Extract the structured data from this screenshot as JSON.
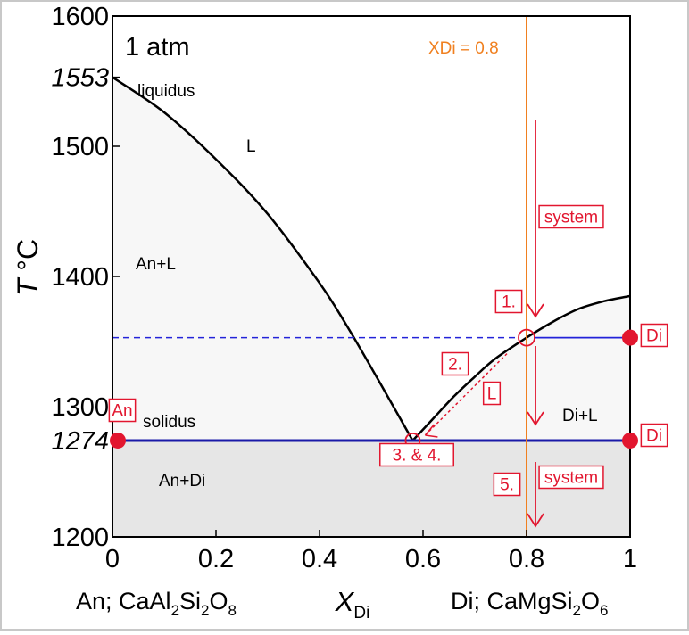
{
  "chart_data": {
    "type": "line",
    "title": "",
    "pressure": "1 atm",
    "xlim": [
      0,
      1
    ],
    "ylim": [
      1200,
      1600
    ],
    "x_ticks": [
      0,
      0.2,
      0.4,
      0.6,
      0.8,
      1
    ],
    "x_tick_labels": [
      "0",
      "0.2",
      "0.4",
      "0.6",
      "0.8",
      "1"
    ],
    "y_ticks": [
      1200,
      1274,
      1300,
      1400,
      1500,
      1553,
      1600
    ],
    "y_tick_labels": [
      "1200",
      "1274",
      "1300",
      "1400",
      "1500",
      "1553",
      "1600"
    ],
    "y_tick_italic": [
      "1274",
      "1553"
    ],
    "xlabel": {
      "pre": "X",
      "sub": "Di"
    },
    "ylabel": {
      "italic": "T",
      "unit": " °C"
    },
    "endmember_left": {
      "text": "An; CaAl",
      "s1": "2",
      "m1": "Si",
      "s2": "2",
      "m2": "O",
      "s3": "8"
    },
    "endmember_right": {
      "text": "Di; CaMgSi",
      "s1": "2",
      "m1": "O",
      "s2": "6"
    },
    "series": [
      {
        "name": "liquidus",
        "x": [
          0,
          0.1,
          0.2,
          0.3,
          0.4,
          0.45,
          0.5,
          0.55,
          0.58
        ],
        "y": [
          1553,
          1526,
          1490,
          1448,
          1395,
          1364,
          1330,
          1295,
          1274
        ]
      },
      {
        "name": "liquidus",
        "x": [
          0.58,
          0.62,
          0.66,
          0.7,
          0.74,
          0.8,
          0.85,
          0.9,
          0.95,
          1.0
        ],
        "y": [
          1274,
          1291,
          1308,
          1323,
          1337,
          1353,
          1365,
          1375,
          1381,
          1385
        ]
      }
    ],
    "solidus_T": 1274,
    "eutectic": {
      "x": 0.58,
      "T": 1274
    },
    "tie_line_T": 1353,
    "system_x": 0.8,
    "system_x_label": "XDi = 0.8",
    "field_labels": {
      "liquidus": "liquidus",
      "liquid": "L",
      "an_l": "An+L",
      "di_l": "Di+L",
      "solidus": "solidus",
      "an_di": "An+Di",
      "an": "An",
      "di": "Di",
      "path_l": "L",
      "system": "system"
    },
    "steps": [
      "1.",
      "2.",
      "3. & 4.",
      "5."
    ],
    "colors": {
      "liquidus": "#000000",
      "solidus": "#1a1aa8",
      "tie_line": "#2323d9",
      "system_line": "#f08020",
      "annotation": "#e2162f",
      "liquid_field": "#f7f7f7",
      "solid_field": "#e6e6e6"
    }
  }
}
